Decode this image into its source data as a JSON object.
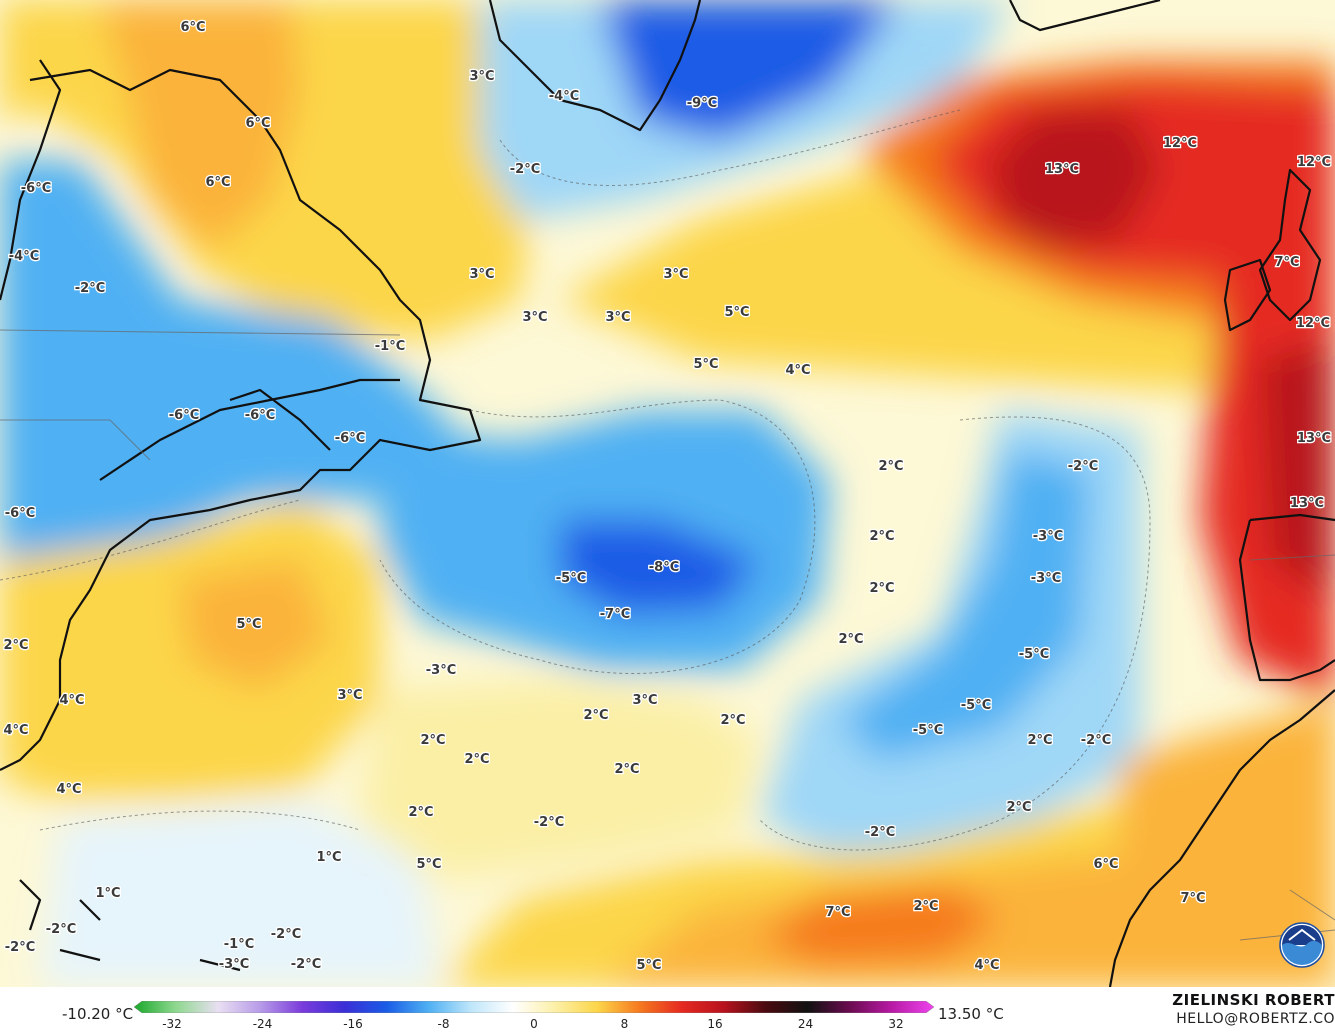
{
  "map": {
    "colors": {
      "ocean_neutral": "#fdf8d6",
      "very_cold": "#1a5ce6",
      "cold": "#4fb0f3",
      "cool": "#9fd7f7",
      "light_cool": "#e6f4fb",
      "light_warm": "#fbefa6",
      "warm": "#fcd64a",
      "warmer": "#fbb33a",
      "hot": "#f57a1f",
      "very_hot": "#e52a20",
      "hottest": "#b8121e",
      "land_outline": "#111111"
    },
    "labels": [
      {
        "id": "l01",
        "text": "6°C"
      },
      {
        "id": "l02",
        "text": "3°C"
      },
      {
        "id": "l03",
        "text": "-4°C"
      },
      {
        "id": "l04",
        "text": "-9°C"
      },
      {
        "id": "l05",
        "text": "6°C"
      },
      {
        "id": "l06",
        "text": "-6°C"
      },
      {
        "id": "l07",
        "text": "6°C"
      },
      {
        "id": "l08",
        "text": "-2°C"
      },
      {
        "id": "l09",
        "text": "13°C"
      },
      {
        "id": "l10",
        "text": "12°C"
      },
      {
        "id": "l11",
        "text": "12°C"
      },
      {
        "id": "l12",
        "text": "-4°C"
      },
      {
        "id": "l13",
        "text": "-2°C"
      },
      {
        "id": "l14",
        "text": "3°C"
      },
      {
        "id": "l15",
        "text": "3°C"
      },
      {
        "id": "l16",
        "text": "7°C"
      },
      {
        "id": "l17",
        "text": "3°C"
      },
      {
        "id": "l18",
        "text": "3°C"
      },
      {
        "id": "l19",
        "text": "5°C"
      },
      {
        "id": "l20",
        "text": "12°C"
      },
      {
        "id": "l21",
        "text": "-1°C"
      },
      {
        "id": "l22",
        "text": "5°C"
      },
      {
        "id": "l23",
        "text": "4°C"
      },
      {
        "id": "l24",
        "text": "-6°C"
      },
      {
        "id": "l25",
        "text": "-6°C"
      },
      {
        "id": "l26",
        "text": "-6°C"
      },
      {
        "id": "l27",
        "text": "13°C"
      },
      {
        "id": "l28",
        "text": "2°C"
      },
      {
        "id": "l29",
        "text": "-2°C"
      },
      {
        "id": "l30",
        "text": "-6°C"
      },
      {
        "id": "l31",
        "text": "13°C"
      },
      {
        "id": "l32",
        "text": "2°C"
      },
      {
        "id": "l33",
        "text": "-3°C"
      },
      {
        "id": "l34",
        "text": "-8°C"
      },
      {
        "id": "l35",
        "text": "-5°C"
      },
      {
        "id": "l36",
        "text": "-3°C"
      },
      {
        "id": "l37",
        "text": "2°C"
      },
      {
        "id": "l38",
        "text": "-7°C"
      },
      {
        "id": "l39",
        "text": "5°C"
      },
      {
        "id": "l40",
        "text": "2°C"
      },
      {
        "id": "l41",
        "text": "2°C"
      },
      {
        "id": "l42",
        "text": "-5°C"
      },
      {
        "id": "l43",
        "text": "-3°C"
      },
      {
        "id": "l44",
        "text": "3°C"
      },
      {
        "id": "l45",
        "text": "4°C"
      },
      {
        "id": "l46",
        "text": "3°C"
      },
      {
        "id": "l47",
        "text": "-5°C"
      },
      {
        "id": "l48",
        "text": "2°C"
      },
      {
        "id": "l49",
        "text": "2°C"
      },
      {
        "id": "l50",
        "text": "-5°C"
      },
      {
        "id": "l51",
        "text": "4°C"
      },
      {
        "id": "l52",
        "text": "2°C"
      },
      {
        "id": "l53",
        "text": "2°C"
      },
      {
        "id": "l54",
        "text": "2°C"
      },
      {
        "id": "l55",
        "text": "-2°C"
      },
      {
        "id": "l56",
        "text": "4°C"
      },
      {
        "id": "l57",
        "text": "2°C"
      },
      {
        "id": "l58",
        "text": "2°C"
      },
      {
        "id": "l59",
        "text": "-2°C"
      },
      {
        "id": "l60",
        "text": "2°C"
      },
      {
        "id": "l61",
        "text": "-2°C"
      },
      {
        "id": "l62",
        "text": "1°C"
      },
      {
        "id": "l63",
        "text": "5°C"
      },
      {
        "id": "l64",
        "text": "1°C"
      },
      {
        "id": "l65",
        "text": "6°C"
      },
      {
        "id": "l66",
        "text": "7°C"
      },
      {
        "id": "l67",
        "text": "7°C"
      },
      {
        "id": "l68",
        "text": "2°C"
      },
      {
        "id": "l69",
        "text": "-2°C"
      },
      {
        "id": "l70",
        "text": "-2°C"
      },
      {
        "id": "l71",
        "text": "-1°C"
      },
      {
        "id": "l72",
        "text": "-2°C"
      },
      {
        "id": "l73",
        "text": "-3°C"
      },
      {
        "id": "l74",
        "text": "5°C"
      },
      {
        "id": "l75",
        "text": "4°C"
      },
      {
        "id": "l76",
        "text": "-2°C"
      }
    ]
  },
  "legend": {
    "min_label": "-10.20 °C",
    "max_label": "13.50 °C",
    "ticks": [
      "-32",
      "-24",
      "-16",
      "-8",
      "0",
      "8",
      "16",
      "24",
      "32"
    ],
    "gradient_stops": [
      "#1aa82a",
      "#8fd890",
      "#e9dff2",
      "#b79be8",
      "#7a3bdb",
      "#3a2fd6",
      "#1a5ce6",
      "#4fb0f3",
      "#bfe6fa",
      "#ffffff",
      "#fcf0a8",
      "#fcd64a",
      "#f57a1f",
      "#e52a20",
      "#b8121e",
      "#4a0a10",
      "#111111",
      "#6b0b50",
      "#b81aa5",
      "#ee44ee"
    ]
  },
  "credits": {
    "author": "ZIELINSKI ROBERT",
    "email": "HELLO@ROBERTZ.CO",
    "logo_text": "NOAA"
  }
}
